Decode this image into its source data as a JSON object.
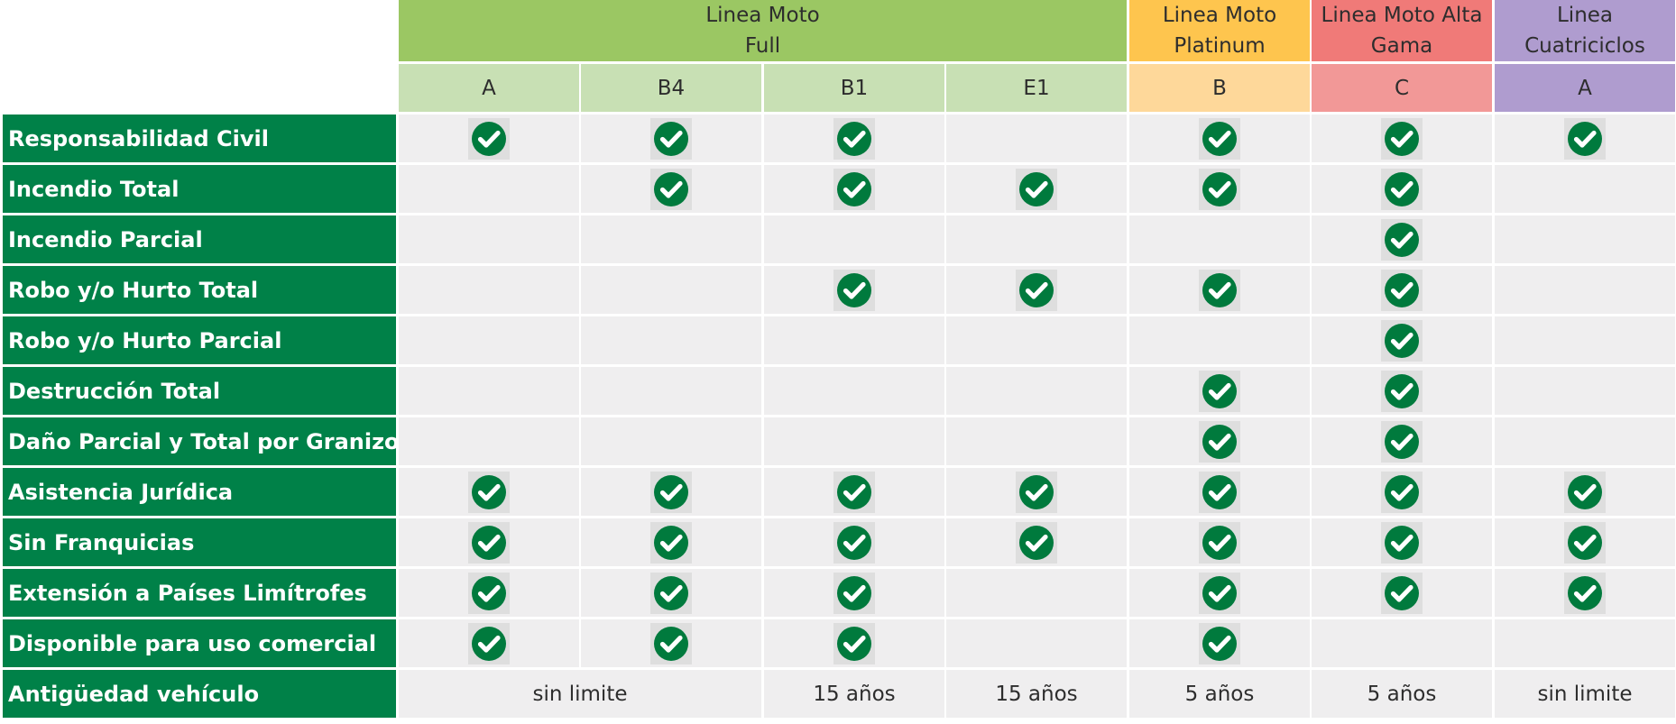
{
  "colors": {
    "label_bg": "#008148",
    "label_text": "#ffffff",
    "cell_bg": "#efeeef",
    "check_circle": "#007a3d",
    "check_box_bg": "#dedede"
  },
  "groups": [
    {
      "lines": [
        "Linea Moto",
        "Full"
      ],
      "span": 4,
      "color": "#9bc763"
    },
    {
      "lines": [
        "Linea Moto",
        "Platinum"
      ],
      "span": 1,
      "color": "#fec54e"
    },
    {
      "lines": [
        "Linea Moto Alta",
        "Gama"
      ],
      "span": 1,
      "color": "#f07a78"
    },
    {
      "lines": [
        "Linea",
        "Cuatriciclos"
      ],
      "span": 1,
      "color": "#af9ccf"
    }
  ],
  "subheaders": [
    {
      "label": "A",
      "color": "#c8e0b4"
    },
    {
      "label": "B4",
      "color": "#c8e0b4"
    },
    {
      "label": "B1",
      "color": "#c8e0b4"
    },
    {
      "label": "E1",
      "color": "#c8e0b4"
    },
    {
      "label": "B",
      "color": "#fed89a"
    },
    {
      "label": "C",
      "color": "#f29897"
    },
    {
      "label": "A",
      "color": "#af9ccf"
    }
  ],
  "rows": [
    {
      "label": "Responsabilidad Civil",
      "checks": [
        1,
        1,
        1,
        0,
        1,
        1,
        1
      ]
    },
    {
      "label": "Incendio Total",
      "checks": [
        0,
        1,
        1,
        1,
        1,
        1,
        0
      ]
    },
    {
      "label": "Incendio Parcial",
      "checks": [
        0,
        0,
        0,
        0,
        0,
        1,
        0
      ]
    },
    {
      "label": "Robo y/o Hurto Total",
      "checks": [
        0,
        0,
        1,
        1,
        1,
        1,
        0
      ]
    },
    {
      "label": "Robo y/o Hurto Parcial",
      "checks": [
        0,
        0,
        0,
        0,
        0,
        1,
        0
      ]
    },
    {
      "label": "Destrucción Total",
      "checks": [
        0,
        0,
        0,
        0,
        1,
        1,
        0
      ]
    },
    {
      "label": "Daño Parcial y Total por Granizo",
      "checks": [
        0,
        0,
        0,
        0,
        1,
        1,
        0
      ]
    },
    {
      "label": "Asistencia Jurídica",
      "checks": [
        1,
        1,
        1,
        1,
        1,
        1,
        1
      ]
    },
    {
      "label": "Sin Franquicias",
      "checks": [
        1,
        1,
        1,
        1,
        1,
        1,
        1
      ]
    },
    {
      "label": "Extensión a Países Limítrofes",
      "checks": [
        1,
        1,
        1,
        0,
        1,
        1,
        1
      ]
    },
    {
      "label": "Disponible para uso comercial",
      "checks": [
        1,
        1,
        1,
        0,
        1,
        0,
        0
      ]
    }
  ],
  "last_row": {
    "label": "Antigüedad vehículo",
    "values": [
      {
        "text": "sin limite",
        "span": 2
      },
      {
        "text": "15 años",
        "span": 1
      },
      {
        "text": "15 años",
        "span": 1
      },
      {
        "text": "5 años",
        "span": 1
      },
      {
        "text": "5 años",
        "span": 1
      },
      {
        "text": "sin limite",
        "span": 1
      }
    ]
  }
}
